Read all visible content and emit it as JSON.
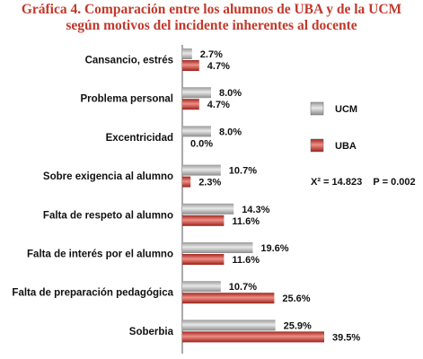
{
  "title_line1": "Gráfica 4. Comparación entre los alumnos de UBA y de la UCM",
  "title_line2": "según motivos del incidente inherentes al docente",
  "stat_text": "X² = 14.823    P = 0.002",
  "colors": {
    "UCM": "#b8b8b8",
    "UBA": "#c9443c",
    "title": "#c0392b"
  },
  "chart_data": {
    "type": "bar",
    "orientation": "horizontal",
    "title": "Gráfica 4. Comparación entre los alumnos de UBA y de la UCM según motivos del incidente inherentes al docente",
    "categories": [
      "Cansancio, estrés",
      "Problema personal",
      "Excentricidad",
      "Sobre exigencia al alumno",
      "Falta de respeto al alumno",
      "Falta de interés por el alumno",
      "Falta de preparación pedagógica",
      "Soberbia"
    ],
    "series": [
      {
        "name": "UCM",
        "values": [
          2.7,
          8.0,
          8.0,
          10.7,
          14.3,
          19.6,
          10.7,
          25.9
        ],
        "labels": [
          "2.7%",
          "8.0%",
          "8.0%",
          "10.7%",
          "14.3%",
          "19.6%",
          "10.7%",
          "25.9%"
        ]
      },
      {
        "name": "UBA",
        "values": [
          4.7,
          4.7,
          0.0,
          2.3,
          11.6,
          11.6,
          25.6,
          39.5
        ],
        "labels": [
          "4.7%",
          "4.7%",
          "0.0%",
          "2.3%",
          "11.6%",
          "11.6%",
          "25.6%",
          "39.5%"
        ]
      }
    ],
    "xlim": [
      0,
      40
    ],
    "legend_position": "right",
    "grid": false
  }
}
